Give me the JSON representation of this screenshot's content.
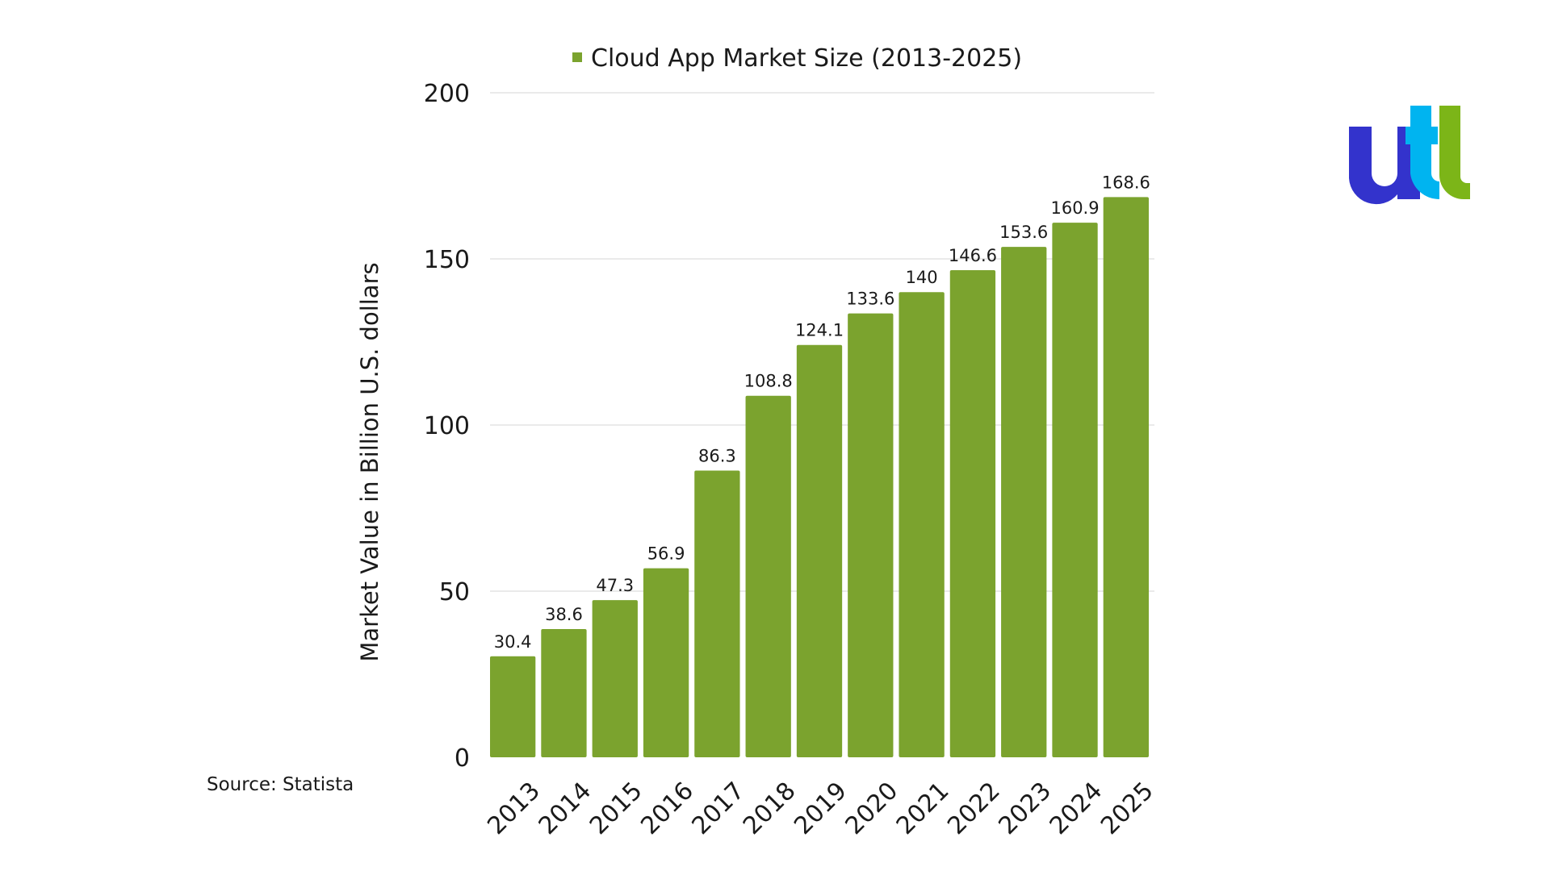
{
  "colors": {
    "bar": "#7ba32e",
    "grid": "#d4d4d4",
    "text": "#1a1a1a",
    "logo_dark": "#3333cc",
    "logo_light": "#00b4f0",
    "logo_green": "#7cb518"
  },
  "logo": {
    "text": "utl"
  },
  "source": "Source: Statista",
  "chart_data": {
    "type": "bar",
    "legend": {
      "label": "Cloud App Market Size (2013-2025)",
      "position": "top"
    },
    "xlabel": "",
    "ylabel": "Market Value in Billion U.S. dollars",
    "ylim": [
      0,
      200
    ],
    "yticks": [
      0,
      50,
      100,
      150,
      200
    ],
    "grid": true,
    "categories": [
      "2013",
      "2014",
      "2015",
      "2016",
      "2017",
      "2018",
      "2019",
      "2020",
      "2021",
      "2022",
      "2023",
      "2024",
      "2025"
    ],
    "series": [
      {
        "name": "Cloud App Market Size (2013-2025)",
        "values": [
          30.4,
          38.6,
          47.3,
          56.9,
          86.3,
          108.8,
          124.1,
          133.6,
          140,
          146.6,
          153.6,
          160.9,
          168.6
        ]
      }
    ]
  }
}
